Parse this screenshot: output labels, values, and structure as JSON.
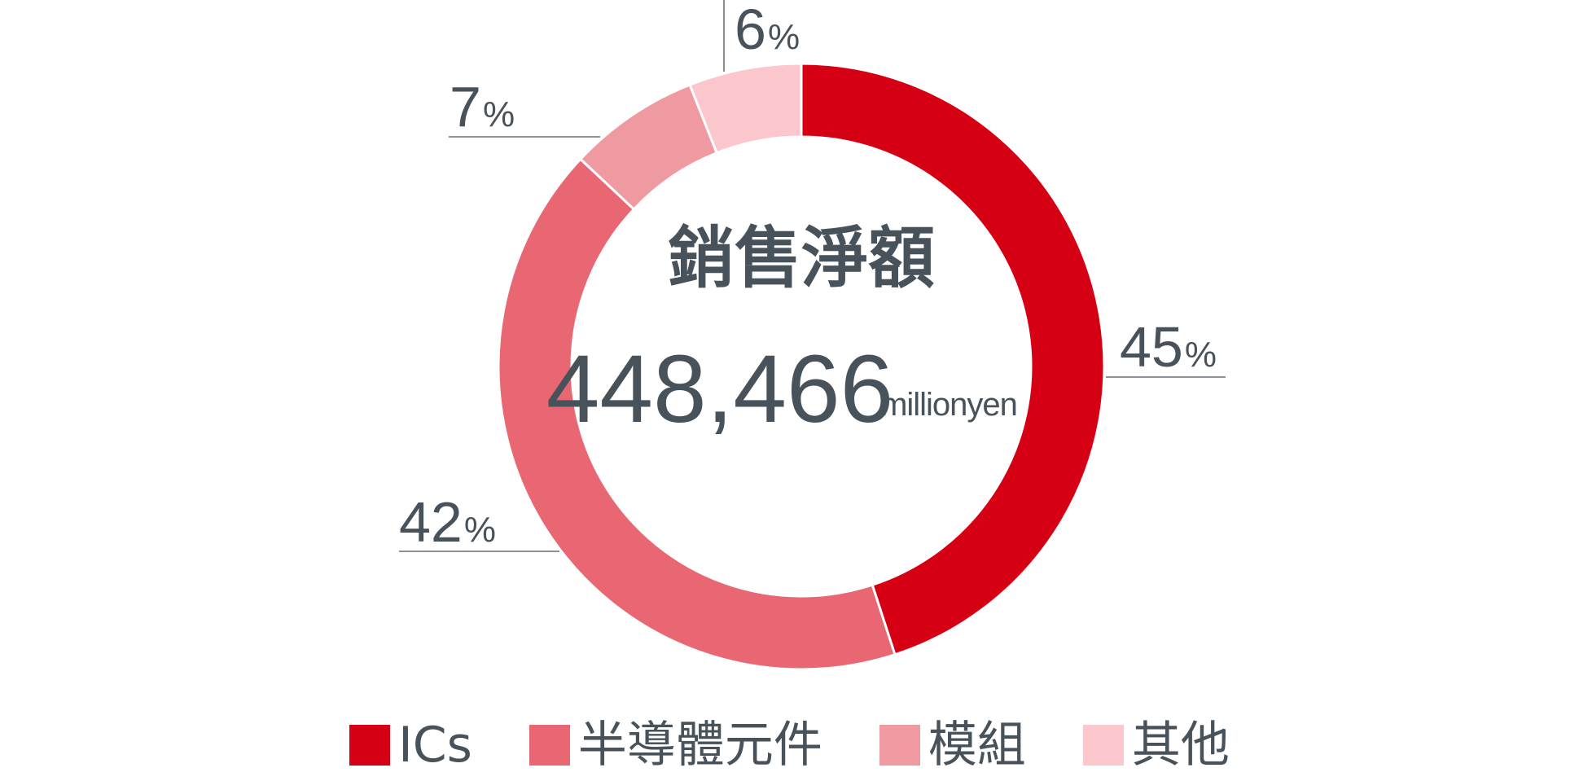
{
  "chart_data": {
    "type": "pie",
    "donut": true,
    "center_title": "銷售淨額",
    "center_value": "448,466",
    "center_unit": "millionyen",
    "percent_symbol": "%",
    "slices": [
      {
        "name": "ICs",
        "value": 45,
        "color": "#d60014"
      },
      {
        "name": "半導體元件",
        "value": 42,
        "color": "#e96772"
      },
      {
        "name": "模組",
        "value": 7,
        "color": "#ee9aa0"
      },
      {
        "name": "其他",
        "value": 6,
        "color": "#fcc6cd"
      }
    ],
    "legend_position": "bottom"
  }
}
